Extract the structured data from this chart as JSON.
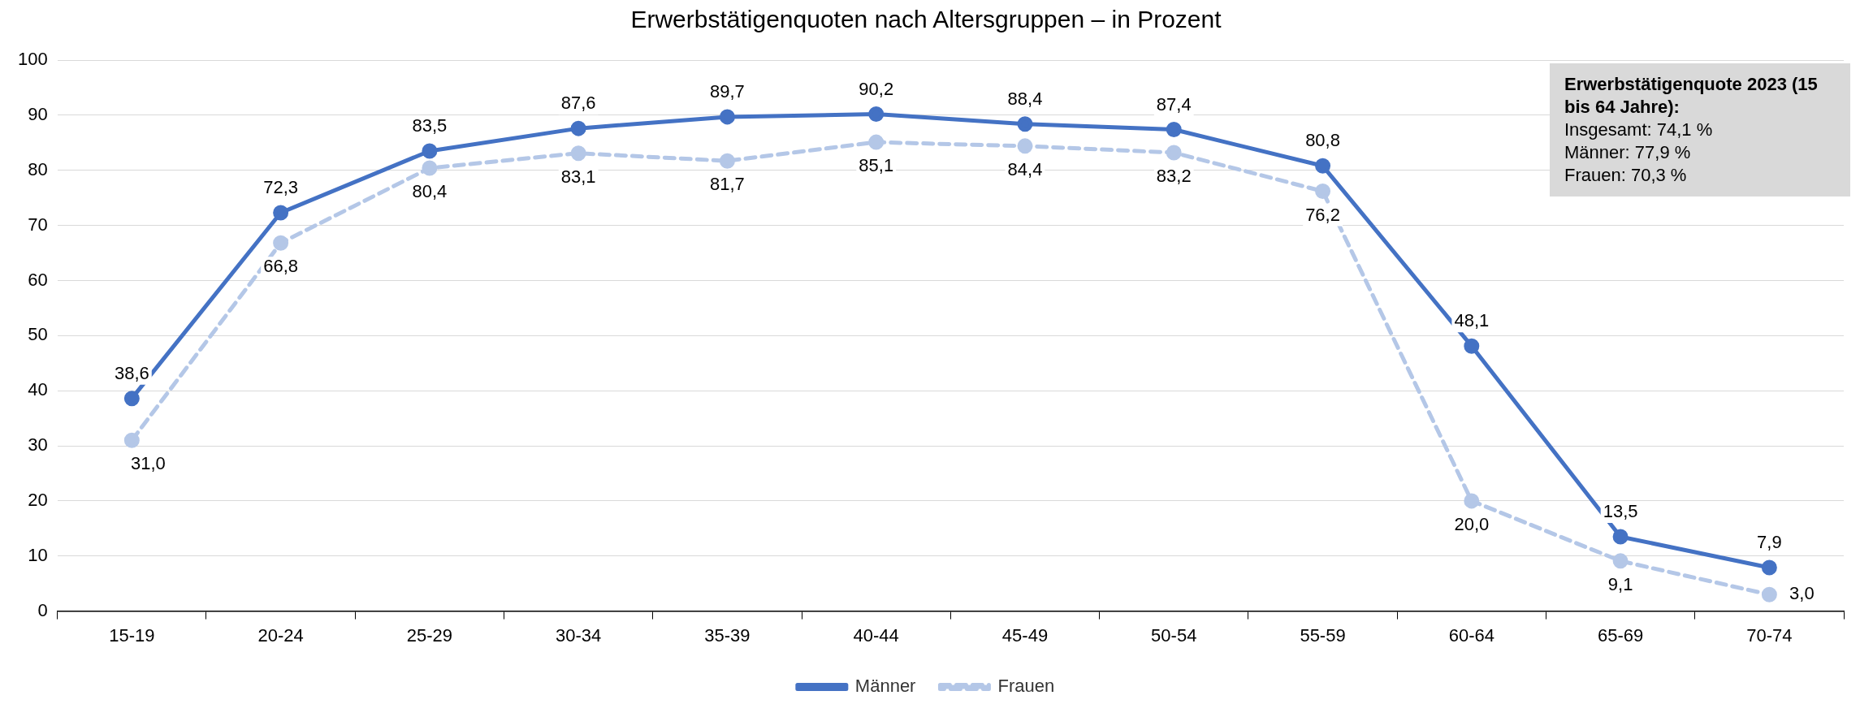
{
  "chart_data": {
    "type": "line",
    "title": "Erwerbstätigenquoten nach Altersgruppen – in Prozent",
    "categories": [
      "15-19",
      "20-24",
      "25-29",
      "30-34",
      "35-39",
      "40-44",
      "45-49",
      "50-54",
      "55-59",
      "60-64",
      "65-69",
      "70-74"
    ],
    "series": [
      {
        "name": "Männer",
        "color": "#4472c4",
        "line_style": "solid",
        "values": [
          38.6,
          72.3,
          83.5,
          87.6,
          89.7,
          90.2,
          88.4,
          87.4,
          80.8,
          48.1,
          13.5,
          7.9
        ],
        "value_labels": [
          "38,6",
          "72,3",
          "83,5",
          "87,6",
          "89,7",
          "90,2",
          "88,4",
          "87,4",
          "80,8",
          "48,1",
          "13,5",
          "7,9"
        ]
      },
      {
        "name": "Frauen",
        "color": "#b4c7e7",
        "line_style": "dashed",
        "values": [
          31.0,
          66.8,
          80.4,
          83.1,
          81.7,
          85.1,
          84.4,
          83.2,
          76.2,
          20.0,
          9.1,
          3.0
        ],
        "value_labels": [
          "31,0",
          "66,8",
          "80,4",
          "83,1",
          "81,7",
          "85,1",
          "84,4",
          "83,2",
          "76,2",
          "20,0",
          "9,1",
          "3,0"
        ]
      }
    ],
    "ylim": [
      0,
      100
    ],
    "yticks": [
      0,
      10,
      20,
      30,
      40,
      50,
      60,
      70,
      80,
      90,
      100
    ],
    "grid": "y",
    "legend": "bottom",
    "marker": "circle",
    "annotations": [
      "Erwerbstätigenquote 2023 (15 bis 64 Jahre):",
      "Insgesamt: 74,1 %",
      "Männer: 77,9 %",
      "Frauen: 70,3 %"
    ]
  }
}
